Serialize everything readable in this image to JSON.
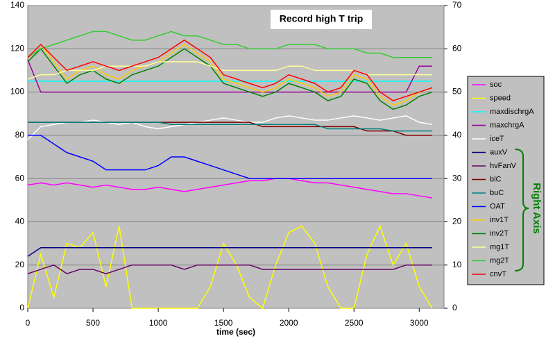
{
  "chart_data": {
    "type": "line",
    "title": "Record high T trip",
    "x_label": "time (sec)",
    "annotation": "Right Axis",
    "x": [
      0,
      100,
      200,
      300,
      400,
      500,
      600,
      700,
      800,
      900,
      1000,
      1100,
      1200,
      1300,
      1400,
      1500,
      1600,
      1700,
      1800,
      1900,
      2000,
      2100,
      2200,
      2300,
      2400,
      2500,
      2600,
      2700,
      2800,
      2900,
      3000,
      3100
    ],
    "xlim": [
      0,
      3190
    ],
    "xticks": [
      0,
      500,
      1000,
      1500,
      2000,
      2500,
      3000
    ],
    "ylim": [
      0,
      140
    ],
    "yticks": [
      0,
      20,
      40,
      60,
      80,
      100,
      120,
      140
    ],
    "y2lim": [
      0,
      70
    ],
    "y2ticks": [
      0,
      10,
      20,
      30,
      40,
      50,
      60,
      70
    ],
    "grid": true,
    "legend": "right",
    "series": [
      {
        "name": "soc",
        "color": "#ff00ff",
        "values": [
          57,
          58,
          57,
          58,
          57,
          56,
          57,
          56,
          55,
          55,
          56,
          55,
          54,
          55,
          56,
          57,
          58,
          59,
          59,
          60,
          60,
          59,
          58,
          58,
          57,
          56,
          55,
          54,
          53,
          53,
          52,
          51
        ]
      },
      {
        "name": "speed",
        "color": "#ffff00",
        "values": [
          0,
          25,
          5,
          30,
          28,
          35,
          10,
          38,
          0,
          0,
          0,
          0,
          0,
          0,
          10,
          30,
          20,
          5,
          0,
          20,
          35,
          38,
          30,
          10,
          0,
          0,
          25,
          38,
          20,
          30,
          10,
          0
        ]
      },
      {
        "name": "maxdischrgA",
        "color": "#00ffff",
        "values": [
          105,
          105,
          105,
          105,
          105,
          105,
          105,
          105,
          105,
          105,
          105,
          105,
          105,
          105,
          105,
          105,
          105,
          105,
          105,
          105,
          105,
          105,
          105,
          105,
          105,
          105,
          105,
          105,
          105,
          105,
          105,
          105
        ]
      },
      {
        "name": "maxchrgA",
        "color": "#990099",
        "values": [
          115,
          100,
          100,
          100,
          100,
          100,
          100,
          100,
          100,
          100,
          100,
          100,
          100,
          100,
          100,
          100,
          100,
          100,
          100,
          100,
          100,
          100,
          100,
          100,
          100,
          100,
          100,
          100,
          100,
          100,
          112,
          112
        ]
      },
      {
        "name": "iceT",
        "color": "#ffffff",
        "values": [
          78,
          84,
          85,
          86,
          86,
          87,
          86,
          85,
          86,
          84,
          83,
          84,
          85,
          86,
          87,
          88,
          87,
          86,
          86,
          88,
          89,
          88,
          87,
          87,
          88,
          89,
          88,
          87,
          88,
          89,
          86,
          85
        ]
      },
      {
        "name": "auxV",
        "color": "#000080",
        "axis": "y2",
        "values": [
          12,
          14,
          14,
          14,
          14,
          14,
          14,
          14,
          14,
          14,
          14,
          14,
          14,
          14,
          14,
          14,
          14,
          14,
          14,
          14,
          14,
          14,
          14,
          14,
          14,
          14,
          14,
          14,
          14,
          14,
          14,
          14
        ]
      },
      {
        "name": "hvFanV",
        "color": "#660066",
        "axis": "y2",
        "values": [
          8,
          9,
          10,
          8,
          9,
          9,
          8,
          9,
          10,
          10,
          10,
          10,
          9,
          10,
          10,
          10,
          10,
          10,
          9,
          9,
          9,
          9,
          9,
          9,
          9,
          9,
          9,
          9,
          9,
          10,
          10,
          10
        ]
      },
      {
        "name": "blC",
        "color": "#800000",
        "axis": "y2",
        "values": [
          43,
          43,
          43,
          43,
          43,
          43,
          43,
          43,
          43,
          43,
          43,
          43,
          43,
          43,
          43,
          43,
          43,
          43,
          42,
          42,
          42,
          42,
          42,
          42,
          42,
          42,
          41,
          41,
          41,
          40,
          40,
          40
        ]
      },
      {
        "name": "buC",
        "color": "#008080",
        "axis": "y2",
        "values": [
          43,
          43,
          43,
          43,
          43,
          43,
          43,
          43,
          43,
          43,
          43,
          42.5,
          42.5,
          42.5,
          42.5,
          42.5,
          42.5,
          42.5,
          42.5,
          42.5,
          42.5,
          42.5,
          42.5,
          41.5,
          41.5,
          41.5,
          41.5,
          41.5,
          41,
          41,
          41,
          41
        ]
      },
      {
        "name": "OAT",
        "color": "#0000ff",
        "axis": "y2",
        "values": [
          40,
          40,
          38,
          36,
          35,
          34,
          32,
          32,
          32,
          32,
          33,
          35,
          35,
          34,
          33,
          32,
          31,
          30,
          30,
          30,
          30,
          30,
          30,
          30,
          30,
          30,
          30,
          30,
          30,
          30,
          30,
          30
        ]
      },
      {
        "name": "inv1T",
        "color": "#ffcc00",
        "axis": "y2",
        "values": [
          58,
          61,
          57,
          53,
          55,
          56,
          54,
          53,
          55,
          56,
          57,
          59,
          61,
          59,
          57,
          53,
          52,
          51,
          50,
          51,
          53,
          52,
          51,
          49,
          50,
          54,
          53,
          49,
          47,
          48,
          50,
          51
        ]
      },
      {
        "name": "inv2T",
        "color": "#008000",
        "axis": "y2",
        "values": [
          57,
          60,
          56,
          52,
          54,
          55,
          53,
          52,
          54,
          55,
          56,
          58,
          60,
          58,
          56,
          52,
          51,
          50,
          49,
          50,
          52,
          51,
          50,
          48,
          49,
          53,
          52,
          48,
          46,
          47,
          49,
          50
        ]
      },
      {
        "name": "mg1T",
        "color": "#ffff99",
        "axis": "y2",
        "values": [
          53,
          54,
          54,
          55,
          55,
          55,
          56,
          56,
          56,
          56,
          57,
          57,
          57,
          57,
          56,
          55,
          55,
          55,
          55,
          55,
          56,
          56,
          55,
          55,
          55,
          55,
          54,
          54,
          54,
          54,
          54,
          54
        ]
      },
      {
        "name": "mg2T",
        "color": "#33cc33",
        "axis": "y2",
        "values": [
          58,
          60,
          61,
          62,
          63,
          64,
          64,
          63,
          62,
          62,
          63,
          64,
          63,
          63,
          62,
          61,
          61,
          60,
          60,
          60,
          61,
          61,
          61,
          60,
          60,
          60,
          59,
          59,
          58,
          58,
          58,
          58
        ]
      },
      {
        "name": "cnvT",
        "color": "#ff0000",
        "axis": "y2",
        "values": [
          58,
          61,
          58,
          55,
          56,
          57,
          56,
          55,
          56,
          57,
          58,
          60,
          62,
          60,
          58,
          54,
          53,
          52,
          51,
          52,
          54,
          53,
          52,
          50,
          51,
          55,
          54,
          50,
          48,
          49,
          50,
          51
        ]
      }
    ]
  }
}
